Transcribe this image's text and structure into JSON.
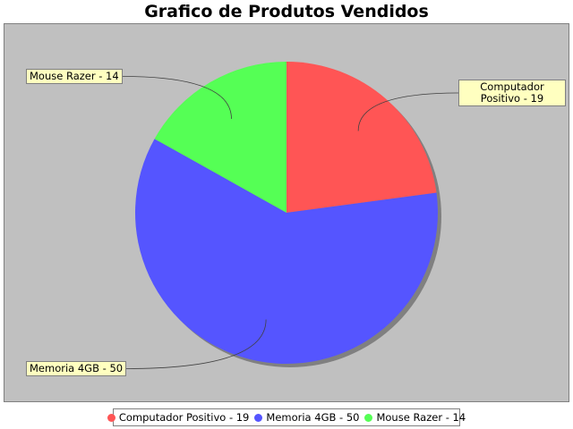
{
  "chart_data": {
    "type": "pie",
    "title": "Grafico de Produtos Vendidos",
    "slices": [
      {
        "label": "Computador Positivo",
        "value": 19,
        "display": "Computador Positivo - 19",
        "color": "#ff5555"
      },
      {
        "label": "Memoria 4GB",
        "value": 50,
        "display": "Memoria 4GB - 50",
        "color": "#5555ff"
      },
      {
        "label": "Mouse Razer",
        "value": 14,
        "display": "Mouse Razer - 14",
        "color": "#55ff55"
      }
    ],
    "legend_position": "bottom",
    "plot_background": "#c0c0c0",
    "label_background": "#ffffc0"
  }
}
